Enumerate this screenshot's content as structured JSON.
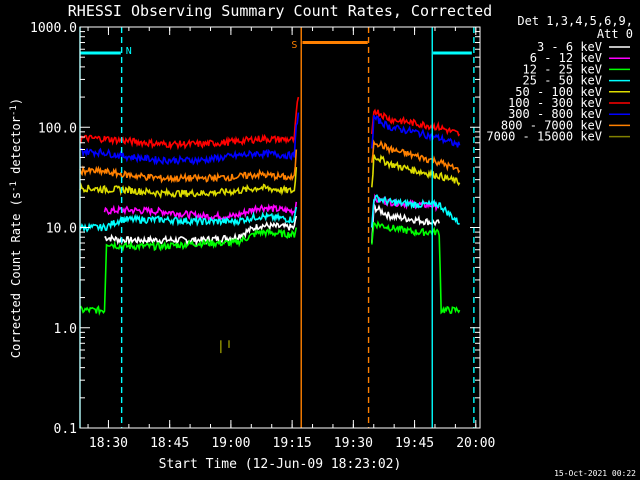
{
  "chart_data": {
    "type": "line",
    "title": "RHESSI Observing Summary Count Rates, Corrected",
    "xlabel": "Start Time (12-Jun-09 18:23:02)",
    "ylabel": "Corrected Count Rate (s",
    "ylabel_sup": "-1",
    "ylabel_tail": " detector",
    "ylabel_end": ")",
    "x_unit": "minutes since 18:23:02",
    "xlim": [
      0,
      98
    ],
    "ylim": [
      0.1,
      1000
    ],
    "y_scale": "log",
    "x_ticks": [
      {
        "value": 6.97,
        "label": "18:30"
      },
      {
        "value": 21.97,
        "label": "18:45"
      },
      {
        "value": 36.97,
        "label": "19:00"
      },
      {
        "value": 51.97,
        "label": "19:15"
      },
      {
        "value": 66.97,
        "label": "19:30"
      },
      {
        "value": 81.97,
        "label": "19:45"
      },
      {
        "value": 96.97,
        "label": "20:00"
      }
    ],
    "y_ticks": [
      {
        "value": 0.1,
        "label": "0.1"
      },
      {
        "value": 1,
        "label": "1.0"
      },
      {
        "value": 10,
        "label": "10.0"
      },
      {
        "value": 100,
        "label": "100.0"
      },
      {
        "value": 1000,
        "label": "1000.0"
      }
    ],
    "legend_header": [
      "Det 1,3,4,5,6,9,",
      "Att 0"
    ],
    "legend_position": "right",
    "series": [
      {
        "name": "3 - 6 keV",
        "color": "#ffffff",
        "segments": [
          {
            "x": [
              6,
              10,
              20,
              30,
              38,
              44,
              52.5,
              53
            ],
            "y": [
              8,
              7.5,
              7.5,
              7.5,
              8,
              10.5,
              10,
              13
            ]
          },
          {
            "x": [
              71.5,
              72,
              76,
              82,
              88
            ],
            "y": [
              7,
              16,
              13,
              12,
              11
            ]
          }
        ]
      },
      {
        "name": "6 - 12 keV",
        "color": "#ff00ff",
        "segments": [
          {
            "x": [
              6,
              10,
              20,
              30,
              38,
              44,
              52.5,
              53
            ],
            "y": [
              14.5,
              15,
              14.5,
              13,
              13,
              16,
              14.5,
              18
            ]
          },
          {
            "x": [
              71.5,
              72,
              76,
              82,
              88
            ],
            "y": [
              10,
              19,
              18,
              17,
              16.5
            ]
          }
        ]
      },
      {
        "name": "12 - 25 keV",
        "color": "#00ff00",
        "segments": [
          {
            "x": [
              0,
              6,
              6.5,
              10,
              20,
              30,
              38,
              44,
              52.5,
              53
            ],
            "y": [
              1.5,
              1.5,
              7,
              6.5,
              6.5,
              7,
              7,
              9,
              8.5,
              10
            ]
          },
          {
            "x": [
              71.5,
              72,
              76,
              82,
              88,
              88.5,
              93
            ],
            "y": [
              7,
              11,
              10,
              9,
              9,
              1.5,
              1.5
            ]
          }
        ]
      },
      {
        "name": "25 - 50 keV",
        "color": "#00ffff",
        "segments": [
          {
            "x": [
              0,
              6,
              10,
              20,
              30,
              38,
              44,
              52.5,
              53
            ],
            "y": [
              10,
              10,
              12,
              12,
              11.5,
              11.5,
              13,
              12,
              16
            ]
          },
          {
            "x": [
              71.5,
              72,
              76,
              82,
              88,
              93
            ],
            "y": [
              10,
              20,
              18,
              17,
              17,
              11
            ]
          }
        ]
      },
      {
        "name": "50 - 100 keV",
        "color": "#dddd00",
        "segments": [
          {
            "x": [
              0,
              6,
              10,
              20,
              30,
              38,
              44,
              52.5,
              53
            ],
            "y": [
              25,
              24,
              24,
              22,
              22,
              23,
              25,
              23,
              40
            ]
          },
          {
            "x": [
              71.5,
              72,
              76,
              82,
              88,
              93
            ],
            "y": [
              25,
              52,
              43,
              37,
              33,
              28
            ]
          }
        ]
      },
      {
        "name": "100 - 300 keV",
        "color": "#ff0000",
        "segments": [
          {
            "x": [
              0,
              6,
              10,
              20,
              30,
              38,
              44,
              52.5,
              53,
              53.5
            ],
            "y": [
              78,
              77,
              74,
              68,
              68,
              72,
              77,
              75,
              140,
              200
            ]
          },
          {
            "x": [
              71.5,
              72,
              76,
              82,
              88,
              93
            ],
            "y": [
              80,
              150,
              120,
              110,
              100,
              85
            ]
          }
        ]
      },
      {
        "name": "300 - 800 keV",
        "color": "#0000ff",
        "segments": [
          {
            "x": [
              0,
              6,
              10,
              20,
              30,
              38,
              44,
              52.5,
              53,
              53.5
            ],
            "y": [
              58,
              56,
              52,
              47,
              47,
              52,
              55,
              52,
              100,
              140
            ]
          },
          {
            "x": [
              71.5,
              72,
              76,
              82,
              88,
              93
            ],
            "y": [
              60,
              125,
              100,
              90,
              78,
              66
            ]
          }
        ]
      },
      {
        "name": "800 - 7000 keV",
        "color": "#ff8000",
        "segments": [
          {
            "x": [
              0,
              6,
              10,
              20,
              30,
              38,
              44,
              52.5,
              53
            ],
            "y": [
              37,
              36,
              34,
              31,
              31,
              32,
              34,
              31,
              60
            ]
          },
          {
            "x": [
              71.5,
              72,
              76,
              82,
              88,
              93
            ],
            "y": [
              42,
              73,
              60,
              52,
              45,
              37
            ]
          }
        ]
      },
      {
        "name": "7000 - 15000 keV",
        "color": "#808000",
        "segments": [
          {
            "x": [
              34.5,
              34.5
            ],
            "y": [
              0.6,
              0.75
            ]
          },
          {
            "x": [
              36.5,
              36.5
            ],
            "y": [
              0.6,
              0.75
            ]
          }
        ]
      }
    ],
    "markers": [
      {
        "type": "cyan-bar",
        "x": [
          0,
          10
        ],
        "y": 550
      },
      {
        "type": "cyan-bar",
        "x": [
          86.5,
          96
        ],
        "y": 550
      },
      {
        "type": "orange-bar",
        "x": [
          54.5,
          70.5
        ],
        "y": 700
      }
    ],
    "vlines": [
      {
        "x": 0,
        "color": "#00ffff",
        "style": "solid"
      },
      {
        "x": 10.2,
        "color": "#00ffff",
        "style": "dashed"
      },
      {
        "x": 54.2,
        "color": "#ff8000",
        "style": "solid"
      },
      {
        "x": 70.7,
        "color": "#ff8000",
        "style": "dashed"
      },
      {
        "x": 86.3,
        "color": "#00ffff",
        "style": "solid"
      },
      {
        "x": 96.5,
        "color": "#00ffff",
        "style": "dashed"
      }
    ],
    "annotations": [
      {
        "text": "N",
        "x": 11.2,
        "y": 590,
        "color": "#00ffff"
      },
      {
        "text": "S",
        "x": 51.8,
        "y": 680,
        "color": "#ff8000"
      }
    ],
    "footer": "15-Oct-2021 00:22"
  }
}
